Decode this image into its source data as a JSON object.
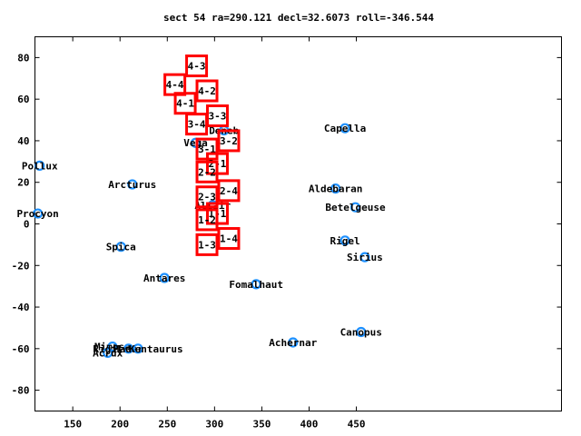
{
  "chart_data": {
    "type": "scatter",
    "title": "sect 54 ra=290.121 decl=32.6073 roll=-346.544",
    "xlim": [
      110,
      667
    ],
    "ylim": [
      -90,
      90
    ],
    "xticks": [
      150,
      200,
      250,
      300,
      350,
      400,
      450
    ],
    "yticks": [
      -80,
      -60,
      -40,
      -20,
      0,
      20,
      40,
      60,
      80
    ],
    "grid": false,
    "marker_color": "#1e90ff",
    "box_color": "#ff0000",
    "stars": [
      {
        "name": "Pollux",
        "x": 115,
        "y": 28
      },
      {
        "name": "Procyon",
        "x": 113,
        "y": 5
      },
      {
        "name": "Arcturus",
        "x": 213,
        "y": 19
      },
      {
        "name": "Spica",
        "x": 201,
        "y": -11
      },
      {
        "name": "Antares",
        "x": 247,
        "y": -26
      },
      {
        "name": "Vega",
        "x": 280,
        "y": 39
      },
      {
        "name": "Deneb",
        "x": 310,
        "y": 45
      },
      {
        "name": "Altair",
        "x": 298,
        "y": 9
      },
      {
        "name": "Fomalhaut",
        "x": 344,
        "y": -29
      },
      {
        "name": "Achernar",
        "x": 383,
        "y": -57
      },
      {
        "name": "Capella",
        "x": 438,
        "y": 46
      },
      {
        "name": "Aldebaran",
        "x": 428,
        "y": 17
      },
      {
        "name": "Betelgeuse",
        "x": 449,
        "y": 8
      },
      {
        "name": "Rigel",
        "x": 438,
        "y": -8
      },
      {
        "name": "Sirius",
        "x": 459,
        "y": -16
      },
      {
        "name": "Canopus",
        "x": 455,
        "y": -52
      },
      {
        "name": "Mimosa",
        "x": 192,
        "y": -59
      },
      {
        "name": "Acrux",
        "x": 187,
        "y": -62
      },
      {
        "name": "Hadar",
        "x": 209,
        "y": -60
      },
      {
        "name": "Rigil Kentaurus",
        "x": 219,
        "y": -60
      }
    ],
    "boxes": [
      {
        "label": "4-3",
        "x": 281,
        "y": 76
      },
      {
        "label": "4-4",
        "x": 258,
        "y": 67
      },
      {
        "label": "4-2",
        "x": 292,
        "y": 64
      },
      {
        "label": "4-1",
        "x": 269,
        "y": 58
      },
      {
        "label": "3-3",
        "x": 303,
        "y": 52
      },
      {
        "label": "3-4",
        "x": 281,
        "y": 48
      },
      {
        "label": "3-2",
        "x": 315,
        "y": 40
      },
      {
        "label": "3-1",
        "x": 292,
        "y": 36
      },
      {
        "label": "2-1",
        "x": 303,
        "y": 29
      },
      {
        "label": "2-2",
        "x": 292,
        "y": 25
      },
      {
        "label": "2-4",
        "x": 315,
        "y": 16
      },
      {
        "label": "2-3",
        "x": 292,
        "y": 13
      },
      {
        "label": "1-1",
        "x": 303,
        "y": 5
      },
      {
        "label": "1-2",
        "x": 292,
        "y": 2
      },
      {
        "label": "1-4",
        "x": 315,
        "y": -7
      },
      {
        "label": "1-3",
        "x": 292,
        "y": -10
      }
    ]
  }
}
